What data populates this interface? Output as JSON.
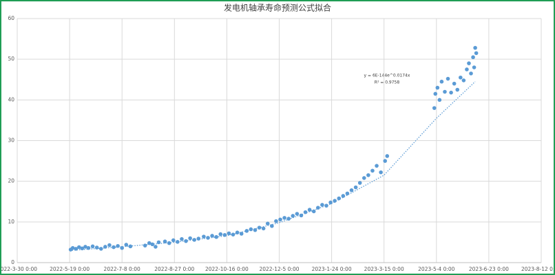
{
  "chart_data": {
    "type": "scatter",
    "title": "发电机轴承寿命预测公式拟合",
    "annotations": [
      "y = 6E-144e^0.0174x",
      "R² = 0.9758"
    ],
    "color": "#5b9bd5",
    "grid": true,
    "xlim": [
      "2022-03-30",
      "2023-08-12"
    ],
    "xticks": [
      {
        "value": "2022-03-30",
        "label": "2022-3-30 0:00"
      },
      {
        "value": "2022-05-19",
        "label": "2022-5-19 0:00"
      },
      {
        "value": "2022-07-08",
        "label": "2022-7-8 0:00"
      },
      {
        "value": "2022-08-27",
        "label": "2022-8-27 0:00"
      },
      {
        "value": "2022-10-16",
        "label": "2022-10-16 0:00"
      },
      {
        "value": "2022-12-05",
        "label": "2022-12-5 0:00"
      },
      {
        "value": "2023-01-24",
        "label": "2023-1-24 0:00"
      },
      {
        "value": "2023-03-15",
        "label": "2023-3-15 0:00"
      },
      {
        "value": "2023-05-04",
        "label": "2023-5-4 0:00"
      },
      {
        "value": "2023-06-23",
        "label": "2023-6-23 0:00"
      },
      {
        "value": "2023-08-12",
        "label": "2023-8-12 0:00"
      }
    ],
    "ylim": [
      0,
      60
    ],
    "yticks": [
      0,
      10,
      20,
      30,
      40,
      50,
      60
    ],
    "x": [
      "2022-05-20",
      "2022-05-22",
      "2022-05-25",
      "2022-05-28",
      "2022-05-31",
      "2022-06-03",
      "2022-06-06",
      "2022-06-10",
      "2022-06-14",
      "2022-06-18",
      "2022-06-22",
      "2022-06-26",
      "2022-06-30",
      "2022-07-04",
      "2022-07-08",
      "2022-07-12",
      "2022-07-16",
      "2022-07-30",
      "2022-08-03",
      "2022-08-06",
      "2022-08-09",
      "2022-08-12",
      "2022-08-18",
      "2022-08-22",
      "2022-08-26",
      "2022-08-30",
      "2022-09-03",
      "2022-09-07",
      "2022-09-11",
      "2022-09-15",
      "2022-09-19",
      "2022-09-24",
      "2022-09-28",
      "2022-10-02",
      "2022-10-06",
      "2022-10-10",
      "2022-10-14",
      "2022-10-18",
      "2022-10-22",
      "2022-10-26",
      "2022-10-30",
      "2022-11-04",
      "2022-11-08",
      "2022-11-12",
      "2022-11-16",
      "2022-11-20",
      "2022-11-24",
      "2022-11-28",
      "2022-12-02",
      "2022-12-06",
      "2022-12-10",
      "2022-12-14",
      "2022-12-18",
      "2022-12-22",
      "2022-12-26",
      "2022-12-30",
      "2023-01-03",
      "2023-01-07",
      "2023-01-11",
      "2023-01-15",
      "2023-01-19",
      "2023-01-23",
      "2023-01-27",
      "2023-01-31",
      "2023-02-04",
      "2023-02-08",
      "2023-02-12",
      "2023-02-16",
      "2023-02-20",
      "2023-02-24",
      "2023-02-28",
      "2023-03-04",
      "2023-03-08",
      "2023-03-12",
      "2023-03-16",
      "2023-03-18",
      "2023-05-02",
      "2023-05-03",
      "2023-05-05",
      "2023-05-07",
      "2023-05-09",
      "2023-05-12",
      "2023-05-15",
      "2023-05-18",
      "2023-05-21",
      "2023-05-24",
      "2023-05-27",
      "2023-05-30",
      "2023-06-02",
      "2023-06-04",
      "2023-06-06",
      "2023-06-08",
      "2023-06-09",
      "2023-06-10",
      "2023-06-11"
    ],
    "values": [
      3.2,
      3.6,
      3.4,
      3.8,
      3.5,
      3.9,
      3.6,
      4.0,
      3.7,
      3.4,
      3.9,
      4.3,
      3.8,
      4.1,
      3.6,
      4.4,
      4.0,
      4.2,
      4.8,
      4.5,
      3.9,
      5.0,
      5.2,
      4.8,
      5.5,
      5.1,
      5.8,
      5.3,
      6.0,
      5.6,
      5.9,
      6.4,
      6.1,
      6.6,
      6.3,
      7.0,
      6.8,
      7.2,
      6.9,
      7.4,
      7.1,
      7.8,
      8.2,
      8.0,
      8.6,
      8.4,
      9.6,
      9.0,
      10.2,
      10.6,
      11.0,
      10.8,
      11.5,
      12.0,
      11.6,
      12.4,
      13.0,
      12.6,
      13.5,
      14.2,
      14.0,
      14.8,
      15.2,
      15.8,
      16.4,
      17.0,
      17.8,
      18.5,
      19.6,
      20.8,
      21.5,
      22.6,
      23.8,
      22.2,
      25.0,
      26.2,
      38.0,
      41.5,
      43.0,
      40.0,
      44.5,
      42.0,
      45.2,
      41.8,
      44.0,
      42.5,
      45.5,
      44.8,
      47.5,
      49.0,
      46.5,
      50.5,
      48.0,
      52.8,
      51.5
    ],
    "trendline": {
      "color": "#5b9bd5",
      "x": [
        "2022-05-19",
        "2022-07-08",
        "2022-08-27",
        "2022-10-16",
        "2022-12-05",
        "2023-01-24",
        "2023-03-15",
        "2023-05-04",
        "2023-06-10"
      ],
      "values": [
        3.0,
        3.9,
        5.0,
        6.6,
        9.8,
        14.5,
        21.5,
        35.5,
        44.5
      ]
    }
  }
}
